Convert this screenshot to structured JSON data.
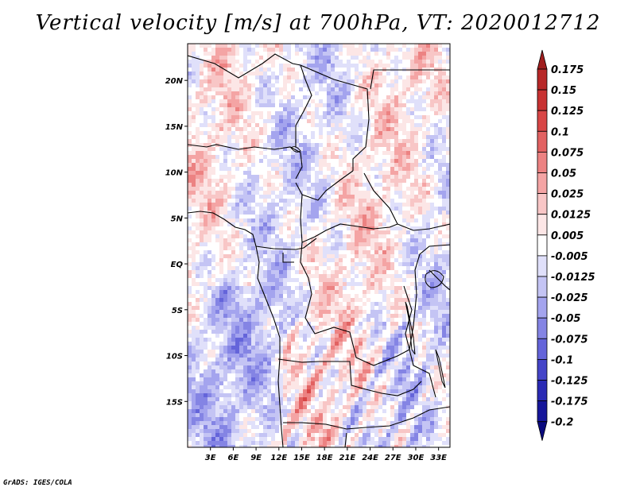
{
  "title": "Vertical velocity [m/s] at 700hPa, VT: 2020012712",
  "footer": "GrADS: IGES/COLA",
  "chart_data": {
    "type": "heatmap",
    "title": "Vertical velocity [m/s] at 700hPa, VT: 2020012712",
    "variable": "vertical velocity",
    "units": "m/s",
    "level": "700hPa",
    "valid_time": "2020012712",
    "lon_range": [
      0,
      34.5
    ],
    "lat_range": [
      -20,
      24
    ],
    "x_ticks": [
      "3E",
      "6E",
      "9E",
      "12E",
      "15E",
      "18E",
      "21E",
      "24E",
      "27E",
      "30E",
      "33E"
    ],
    "x_tick_values": [
      3,
      6,
      9,
      12,
      15,
      18,
      21,
      24,
      27,
      30,
      33
    ],
    "y_ticks": [
      "20N",
      "15N",
      "10N",
      "5N",
      "EQ",
      "5S",
      "10S",
      "15S"
    ],
    "y_tick_values": [
      20,
      15,
      10,
      5,
      0,
      -5,
      -10,
      -15
    ],
    "colorbar": {
      "labels": [
        "0.175",
        "0.15",
        "0.125",
        "0.1",
        "0.075",
        "0.05",
        "0.025",
        "0.0125",
        "0.005",
        "-0.005",
        "-0.0125",
        "-0.025",
        "-0.05",
        "-0.075",
        "-0.1",
        "-0.125",
        "-0.175",
        "-0.2"
      ],
      "colors": [
        "#a01e1e",
        "#b82828",
        "#c83232",
        "#d84646",
        "#e26262",
        "#ec8282",
        "#f4a4a4",
        "#f8c6c6",
        "#fce6e6",
        "#ffffff",
        "#e0e0fa",
        "#c4c4f4",
        "#a4a4ee",
        "#8484e4",
        "#6464da",
        "#4444c8",
        "#2a2ab4",
        "#16169a",
        "#0a0a7e"
      ],
      "extends": "both"
    }
  }
}
